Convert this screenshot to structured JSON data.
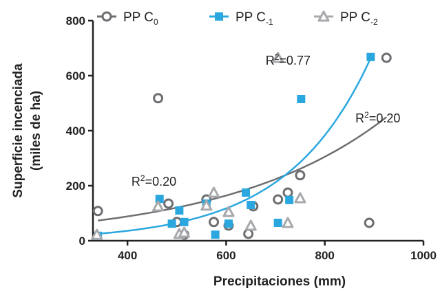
{
  "chart_data": {
    "type": "scatter",
    "xlabel": "Precipitaciones (mm)",
    "ylabel_line1": "Superficie incenciada",
    "ylabel_line2": "(miles de ha)",
    "xlim": [
      330,
      1000
    ],
    "ylim": [
      0,
      800
    ],
    "x_ticks": [
      400,
      600,
      800,
      1000
    ],
    "y_ticks": [
      0,
      200,
      400,
      600,
      800
    ],
    "legend_placement": "top",
    "series": [
      {
        "name_main": "PP C",
        "name_sub": "0",
        "marker": "circle",
        "color": "#6d6e71",
        "points": [
          {
            "x": 340,
            "y": 108
          },
          {
            "x": 462,
            "y": 518
          },
          {
            "x": 483,
            "y": 135
          },
          {
            "x": 500,
            "y": 68
          },
          {
            "x": 515,
            "y": 22
          },
          {
            "x": 560,
            "y": 150
          },
          {
            "x": 575,
            "y": 68
          },
          {
            "x": 605,
            "y": 55
          },
          {
            "x": 645,
            "y": 25
          },
          {
            "x": 655,
            "y": 125
          },
          {
            "x": 705,
            "y": 150
          },
          {
            "x": 725,
            "y": 175
          },
          {
            "x": 750,
            "y": 238
          },
          {
            "x": 890,
            "y": 65
          },
          {
            "x": 925,
            "y": 665
          }
        ]
      },
      {
        "name_main": "PP C",
        "name_sub": "-1",
        "marker": "square",
        "color": "#2aa7df",
        "points": [
          {
            "x": 340,
            "y": 18
          },
          {
            "x": 465,
            "y": 152
          },
          {
            "x": 490,
            "y": 62
          },
          {
            "x": 505,
            "y": 110
          },
          {
            "x": 515,
            "y": 68
          },
          {
            "x": 560,
            "y": 135
          },
          {
            "x": 578,
            "y": 22
          },
          {
            "x": 605,
            "y": 62
          },
          {
            "x": 640,
            "y": 175
          },
          {
            "x": 650,
            "y": 130
          },
          {
            "x": 705,
            "y": 65
          },
          {
            "x": 728,
            "y": 148
          },
          {
            "x": 752,
            "y": 515
          },
          {
            "x": 893,
            "y": 668
          }
        ]
      },
      {
        "name_main": "PP C",
        "name_sub": "-2",
        "marker": "triangle",
        "color": "#a7a9ac",
        "points": [
          {
            "x": 338,
            "y": 22
          },
          {
            "x": 462,
            "y": 125
          },
          {
            "x": 505,
            "y": 25
          },
          {
            "x": 515,
            "y": 30
          },
          {
            "x": 560,
            "y": 128
          },
          {
            "x": 575,
            "y": 175
          },
          {
            "x": 605,
            "y": 105
          },
          {
            "x": 650,
            "y": 55
          },
          {
            "x": 705,
            "y": 665
          },
          {
            "x": 725,
            "y": 65
          },
          {
            "x": 750,
            "y": 155
          }
        ]
      }
    ],
    "fits": [
      {
        "color": "#6d6e71",
        "a": 25.55,
        "b": 0.0031,
        "x_range": [
          340,
          925
        ]
      },
      {
        "color": "#2aa7df",
        "a": 3.39,
        "b": 0.00591,
        "x_range": [
          340,
          895
        ]
      }
    ],
    "annotations": [
      {
        "main": "R",
        "sup": "2",
        "rest": "=0.77",
        "x": 680,
        "y": 640
      },
      {
        "main": "R",
        "sup": "2",
        "rest": "=0.20",
        "x": 862,
        "y": 430
      },
      {
        "main": "R",
        "sup": "2",
        "rest": "=0.20",
        "x": 408,
        "y": 200
      }
    ]
  }
}
